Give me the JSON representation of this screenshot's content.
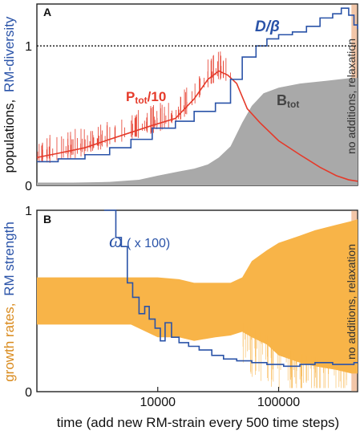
{
  "chart_data": [
    {
      "panel": "A",
      "type": "line",
      "x_scale": "log",
      "xlim": [
        1000,
        450000
      ],
      "ylim": [
        0,
        1.3
      ],
      "yticks": [
        {
          "value": 0,
          "label": "0"
        },
        {
          "value": 1,
          "label": "1"
        }
      ],
      "reference_line": {
        "y": 1,
        "style": "dotted"
      },
      "ylabel_part1": "populations,",
      "ylabel_part2": "RM-diversity",
      "band": {
        "x_start": 400000,
        "x_end": 450000,
        "label": "no additions, relaxation",
        "color": "#f2c6a8"
      },
      "series": [
        {
          "name": "P",
          "name_sub": "tot",
          "name_tail": "/10",
          "color": "#e53a2a",
          "kind": "noisy-line",
          "x": [
            1000,
            1500,
            2500,
            4000,
            6000,
            9000,
            14000,
            20000,
            26000,
            32000,
            38000,
            45000,
            55000,
            70000,
            100000,
            150000,
            220000,
            300000,
            380000,
            450000
          ],
          "y": [
            0.2,
            0.23,
            0.27,
            0.33,
            0.38,
            0.43,
            0.48,
            0.62,
            0.76,
            0.82,
            0.79,
            0.73,
            0.55,
            0.45,
            0.32,
            0.22,
            0.13,
            0.07,
            0.04,
            0.03
          ]
        },
        {
          "name": "D/β",
          "color": "#2a53a8",
          "kind": "step",
          "x": [
            1000,
            1500,
            2500,
            4000,
            6000,
            9000,
            14000,
            20000,
            30000,
            40000,
            50000,
            65000,
            80000,
            100000,
            130000,
            170000,
            220000,
            280000,
            330000,
            380000,
            420000,
            450000
          ],
          "y": [
            0.17,
            0.19,
            0.22,
            0.27,
            0.33,
            0.41,
            0.46,
            0.53,
            0.59,
            0.76,
            0.92,
            1.0,
            1.05,
            1.08,
            1.1,
            1.14,
            1.2,
            1.23,
            1.27,
            1.22,
            1.15,
            1.12
          ]
        },
        {
          "name": "B",
          "name_sub": "tot",
          "name_tail": "",
          "color": "#a9a9a9",
          "kind": "area",
          "x": [
            1000,
            2000,
            4000,
            7000,
            10000,
            15000,
            20000,
            26000,
            32000,
            40000,
            50000,
            60000,
            75000,
            100000,
            150000,
            250000,
            400000,
            450000
          ],
          "y": [
            0.02,
            0.02,
            0.025,
            0.04,
            0.07,
            0.1,
            0.12,
            0.15,
            0.2,
            0.28,
            0.45,
            0.57,
            0.66,
            0.7,
            0.73,
            0.75,
            0.77,
            0.77
          ]
        }
      ]
    },
    {
      "panel": "B",
      "type": "line",
      "x_scale": "log",
      "xlim": [
        1000,
        450000
      ],
      "ylim": [
        0,
        1
      ],
      "yticks": [
        {
          "value": 0,
          "label": "0"
        },
        {
          "value": 1,
          "label": "1"
        }
      ],
      "xticks": [
        {
          "value": 10000,
          "label": "10000"
        },
        {
          "value": 100000,
          "label": "100000"
        }
      ],
      "xlabel": "time (add new RM-strain every 500 time steps)",
      "ylabel_part1": "growth rates,",
      "ylabel_part2": "RM strength",
      "band": {
        "x_start": 400000,
        "x_end": 450000,
        "label": "no additions, relaxation",
        "color": "#f2c6a8"
      },
      "series": [
        {
          "name": "ω",
          "name_tail": "( x 100)",
          "color": "#2a53a8",
          "kind": "step",
          "x": [
            3600,
            4500,
            5000,
            5600,
            6200,
            7000,
            7800,
            8500,
            9500,
            10500,
            11500,
            13000,
            15000,
            18000,
            22000,
            28000,
            35000,
            45000,
            60000,
            80000,
            110000,
            150000,
            200000,
            280000,
            350000,
            420000,
            450000
          ],
          "y": [
            1.0,
            0.85,
            0.8,
            0.6,
            0.52,
            0.43,
            0.47,
            0.4,
            0.35,
            0.28,
            0.38,
            0.3,
            0.27,
            0.25,
            0.23,
            0.2,
            0.18,
            0.17,
            0.16,
            0.15,
            0.14,
            0.15,
            0.16,
            0.15,
            0.15,
            0.16,
            0.16
          ]
        },
        {
          "name": "growth rates",
          "color": "#f8b448",
          "kind": "range-band",
          "x": [
            1000,
            3000,
            6000,
            10000,
            15000,
            20000,
            30000,
            40000,
            50000,
            60000,
            80000,
            100000,
            150000,
            200000,
            300000,
            400000,
            450000
          ],
          "low": [
            0.37,
            0.37,
            0.37,
            0.3,
            0.3,
            0.28,
            0.3,
            0.31,
            0.33,
            0.3,
            0.26,
            0.2,
            0.16,
            0.14,
            0.12,
            0.1,
            0.1
          ],
          "high": [
            0.63,
            0.63,
            0.63,
            0.63,
            0.62,
            0.6,
            0.6,
            0.6,
            0.63,
            0.72,
            0.78,
            0.82,
            0.86,
            0.89,
            0.92,
            0.94,
            0.95
          ]
        }
      ]
    }
  ]
}
